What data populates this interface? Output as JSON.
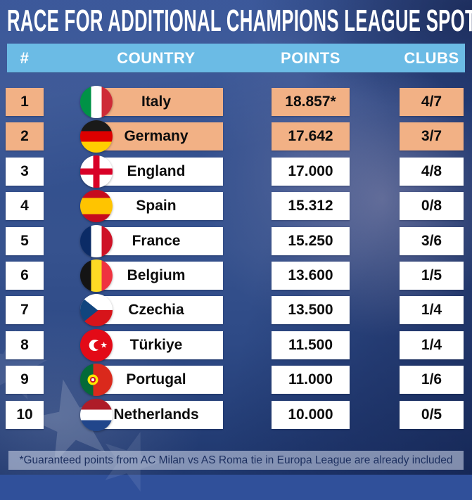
{
  "title": "RACE FOR ADDITIONAL CHAMPIONS LEAGUE SPOTS",
  "table": {
    "columns": [
      "#",
      "COUNTRY",
      "POINTS",
      "CLUBS"
    ],
    "rows": [
      {
        "rank": "1",
        "country": "Italy",
        "flag": "italy",
        "points": "18.857*",
        "clubs": "4/7",
        "highlighted": true
      },
      {
        "rank": "2",
        "country": "Germany",
        "flag": "germany",
        "points": "17.642",
        "clubs": "3/7",
        "highlighted": true
      },
      {
        "rank": "3",
        "country": "England",
        "flag": "england",
        "points": "17.000",
        "clubs": "4/8",
        "highlighted": false
      },
      {
        "rank": "4",
        "country": "Spain",
        "flag": "spain",
        "points": "15.312",
        "clubs": "0/8",
        "highlighted": false
      },
      {
        "rank": "5",
        "country": "France",
        "flag": "france",
        "points": "15.250",
        "clubs": "3/6",
        "highlighted": false
      },
      {
        "rank": "6",
        "country": "Belgium",
        "flag": "belgium",
        "points": "13.600",
        "clubs": "1/5",
        "highlighted": false
      },
      {
        "rank": "7",
        "country": "Czechia",
        "flag": "czechia",
        "points": "13.500",
        "clubs": "1/4",
        "highlighted": false
      },
      {
        "rank": "8",
        "country": "Türkiye",
        "flag": "turkiye",
        "points": "11.500",
        "clubs": "1/4",
        "highlighted": false
      },
      {
        "rank": "9",
        "country": "Portugal",
        "flag": "portugal",
        "points": "11.000",
        "clubs": "1/6",
        "highlighted": false
      },
      {
        "rank": "10",
        "country": "Netherlands",
        "flag": "netherlands",
        "points": "10.000",
        "clubs": "0/5",
        "highlighted": false
      }
    ]
  },
  "footer": {
    "note": "*Guaranteed points from AC Milan vs AS Roma tie in Europa League are already included"
  },
  "colors": {
    "highlight": "#f2b185",
    "header_bg": "#6bbbe5",
    "cell_bg": "#ffffff",
    "header_text": "#ffffff",
    "cell_text": "#0d0d0d",
    "title_text": "#ffffff",
    "footer_bg": "rgba(200,208,228,0.6)",
    "footer_text": "#1c2f5f",
    "background": "#30509a"
  },
  "chart_data": {
    "type": "table",
    "title": "RACE FOR ADDITIONAL CHAMPIONS LEAGUE SPOTS",
    "columns": [
      "#",
      "COUNTRY",
      "POINTS",
      "CLUBS"
    ],
    "rows": [
      [
        "1",
        "Italy",
        "18.857*",
        "4/7"
      ],
      [
        "2",
        "Germany",
        "17.642",
        "3/7"
      ],
      [
        "3",
        "England",
        "17.000",
        "4/8"
      ],
      [
        "4",
        "Spain",
        "15.312",
        "0/8"
      ],
      [
        "5",
        "France",
        "15.250",
        "3/6"
      ],
      [
        "6",
        "Belgium",
        "13.600",
        "1/5"
      ],
      [
        "7",
        "Czechia",
        "13.500",
        "1/4"
      ],
      [
        "8",
        "Türkiye",
        "11.500",
        "1/4"
      ],
      [
        "9",
        "Portugal",
        "11.000",
        "1/6"
      ],
      [
        "10",
        "Netherlands",
        "10.000",
        "0/5"
      ]
    ],
    "highlighted_ranks": [
      1,
      2
    ],
    "footnote": "*Guaranteed points from AC Milan vs AS Roma tie in Europa League are already included"
  }
}
